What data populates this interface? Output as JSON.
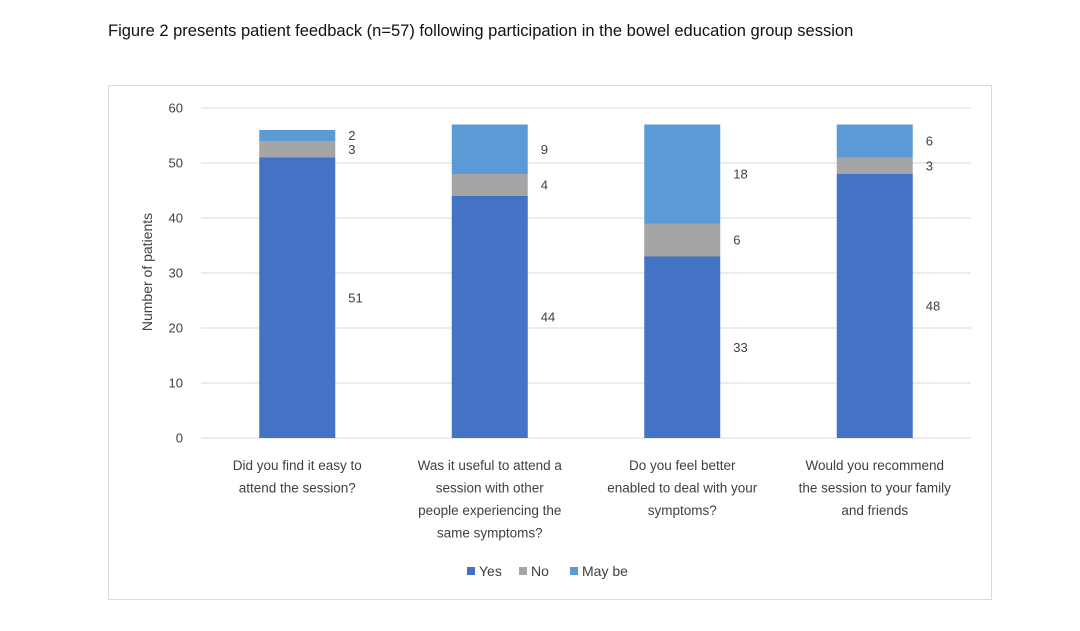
{
  "figure": {
    "title": "Figure 2 presents patient feedback (n=57) following participation in the bowel education group session"
  },
  "chart_data": {
    "type": "bar",
    "stacked": true,
    "title": "",
    "xlabel": "",
    "ylabel": "Number of patients",
    "ylim": [
      0,
      60
    ],
    "yticks": [
      0,
      10,
      20,
      30,
      40,
      50,
      60
    ],
    "grid": true,
    "legend_position": "bottom",
    "categories": [
      [
        "Did you find it easy to",
        "attend the session?"
      ],
      [
        "Was it useful to attend a",
        "session with other",
        "people experiencing the",
        "same symptoms?"
      ],
      [
        "Do you feel better",
        "enabled to deal with your",
        "symptoms?"
      ],
      [
        "Would you recommend",
        "the session to your family",
        "and friends"
      ]
    ],
    "series": [
      {
        "name": "Yes",
        "color": "#4472c4",
        "values": [
          51,
          44,
          33,
          48
        ]
      },
      {
        "name": "No",
        "color": "#a5a5a5",
        "values": [
          3,
          4,
          6,
          3
        ]
      },
      {
        "name": "May be",
        "color": "#5b9bd5",
        "values": [
          2,
          9,
          18,
          6
        ]
      }
    ]
  }
}
